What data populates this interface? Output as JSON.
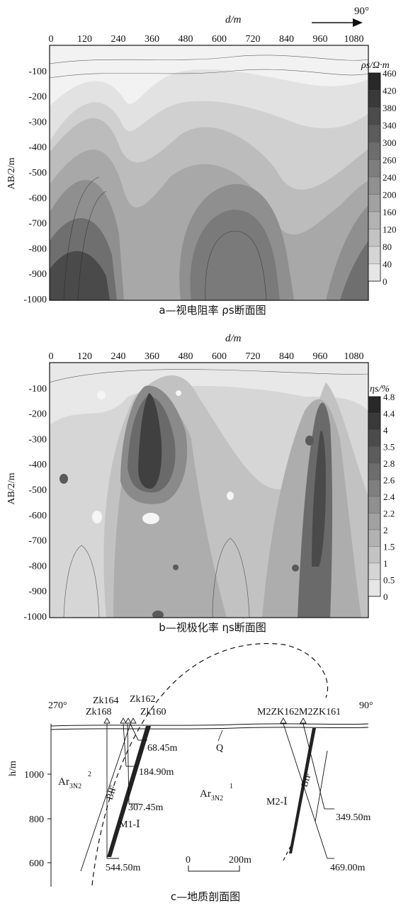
{
  "figure_a": {
    "caption": "a—视电阻率 ρs断面图",
    "x_axis_label": "d/m",
    "y_axis_label": "AB/2/m",
    "direction_label": "90°",
    "x_ticks": [
      "0",
      "120",
      "240",
      "360",
      "480",
      "600",
      "720",
      "840",
      "960",
      "1080"
    ],
    "y_ticks": [
      "-100",
      "-200",
      "-300",
      "-400",
      "-500",
      "-600",
      "-700",
      "-800",
      "-900",
      "-1000"
    ],
    "legend_title": "ρs/Ω·m",
    "legend_levels": [
      "460",
      "420",
      "380",
      "340",
      "300",
      "260",
      "240",
      "200",
      "160",
      "120",
      "80",
      "40",
      "0"
    ]
  },
  "figure_b": {
    "caption": "b—视极化率 ηs断面图",
    "x_axis_label": "d/m",
    "y_axis_label": "AB/2/m",
    "x_ticks": [
      "0",
      "120",
      "240",
      "360",
      "480",
      "600",
      "720",
      "840",
      "960",
      "1080"
    ],
    "y_ticks": [
      "-100",
      "-200",
      "-300",
      "-400",
      "-500",
      "-600",
      "-700",
      "-800",
      "-900",
      "-1000"
    ],
    "legend_title": "ηs/%",
    "legend_levels": [
      "4.8",
      "4.4",
      "4",
      "3.5",
      "2.8",
      "2.6",
      "2.4",
      "2.2",
      "2",
      "1.5",
      "1",
      "0.5",
      "0"
    ]
  },
  "figure_c": {
    "caption": "c—地质剖面图",
    "y_axis_label": "h/m",
    "y_ticks": [
      "1000",
      "800",
      "600"
    ],
    "left_direction": "270°",
    "right_direction": "90°",
    "boreholes": [
      "Zk168",
      "Zk164",
      "Zk162",
      "Zk160",
      "M2ZK162",
      "M2ZK161"
    ],
    "depth_labels": [
      "68.45m",
      "184.90m",
      "307.45m",
      "544.50m",
      "349.50m",
      "469.00m"
    ],
    "orebody_labels": [
      "M1-Ⅰ",
      "M2-Ⅰ"
    ],
    "bif_label": "BIF",
    "quaternary_label": "Q",
    "unit_left": {
      "base": "Ar",
      "sub": "3N",
      "sub2": "2",
      "sup": "2"
    },
    "unit_right": {
      "base": "Ar",
      "sub": "3N",
      "sub2": "2",
      "sup": "1"
    },
    "scale_bar": {
      "start": "0",
      "end": "200m"
    }
  }
}
